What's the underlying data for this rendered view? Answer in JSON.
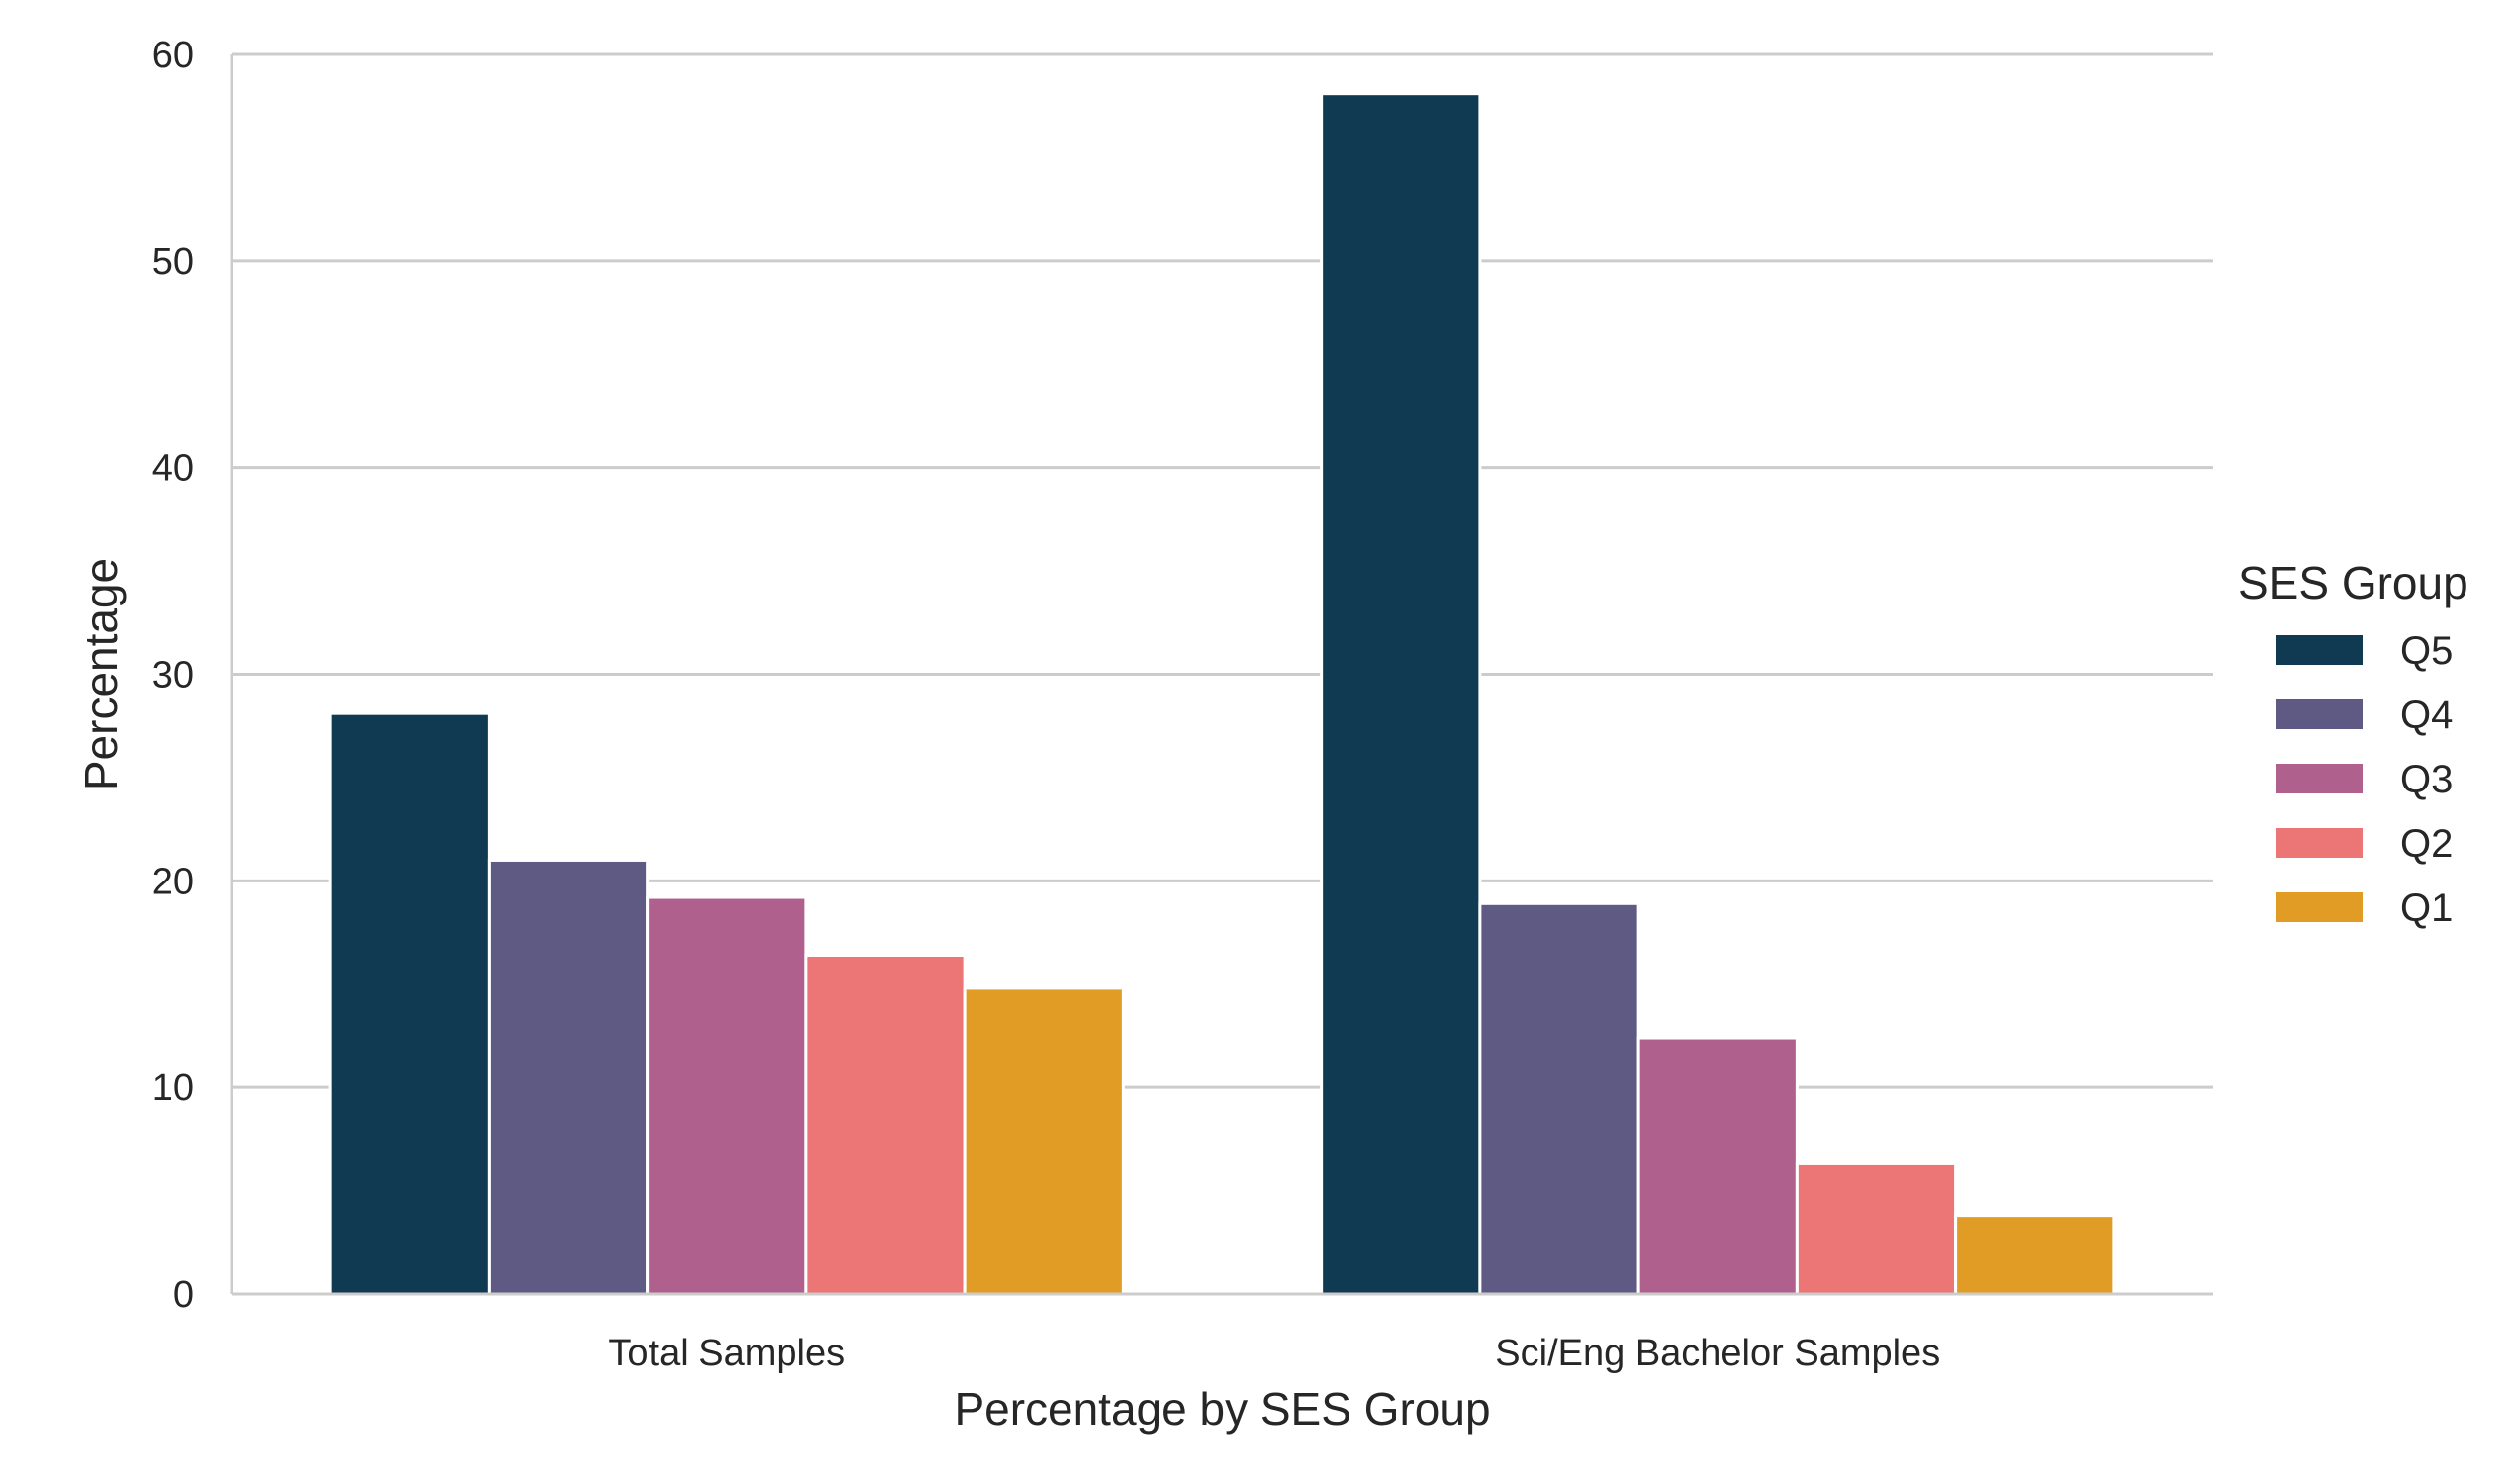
{
  "chart_data": {
    "type": "bar",
    "title": "",
    "xlabel": "Percentage by SES Group",
    "ylabel": "Percentage",
    "ylim": [
      0,
      60
    ],
    "yticks": [
      0,
      10,
      20,
      30,
      40,
      50,
      60
    ],
    "grid": "horizontal",
    "categories": [
      "Total Samples",
      "Sci/Eng Bachelor Samples"
    ],
    "legend": {
      "title": "SES Group",
      "placement": "right"
    },
    "series": [
      {
        "name": "Q5",
        "color": "#0f3a52",
        "values": [
          28.1,
          58.1
        ]
      },
      {
        "name": "Q4",
        "color": "#5e5a84",
        "values": [
          21.0,
          18.9
        ]
      },
      {
        "name": "Q3",
        "color": "#b0608c",
        "values": [
          19.2,
          12.4
        ]
      },
      {
        "name": "Q2",
        "color": "#ec7576",
        "values": [
          16.4,
          6.3
        ]
      },
      {
        "name": "Q1",
        "color": "#e09c24",
        "values": [
          14.8,
          3.8
        ]
      }
    ]
  }
}
